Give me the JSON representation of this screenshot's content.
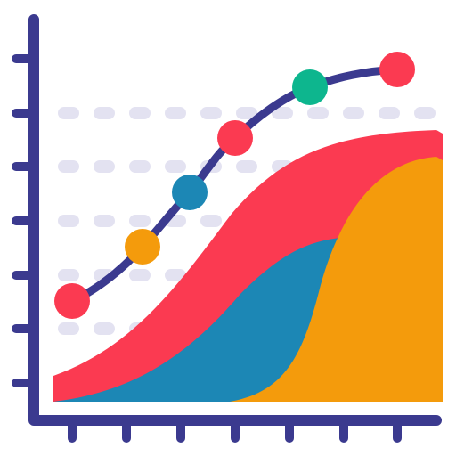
{
  "icon": {
    "name": "area-line-chart-icon",
    "colors": {
      "axis": "#3B3A8F",
      "gridline": "#E3E2F1",
      "area_red": "#FB3A51",
      "area_blue": "#1C87B5",
      "area_orange": "#F49B0C",
      "line": "#3B3A8F",
      "dot_red": "#FB3A51",
      "dot_orange": "#F49B0C",
      "dot_blue": "#1C87B5",
      "dot_green": "#0DB68E"
    }
  }
}
